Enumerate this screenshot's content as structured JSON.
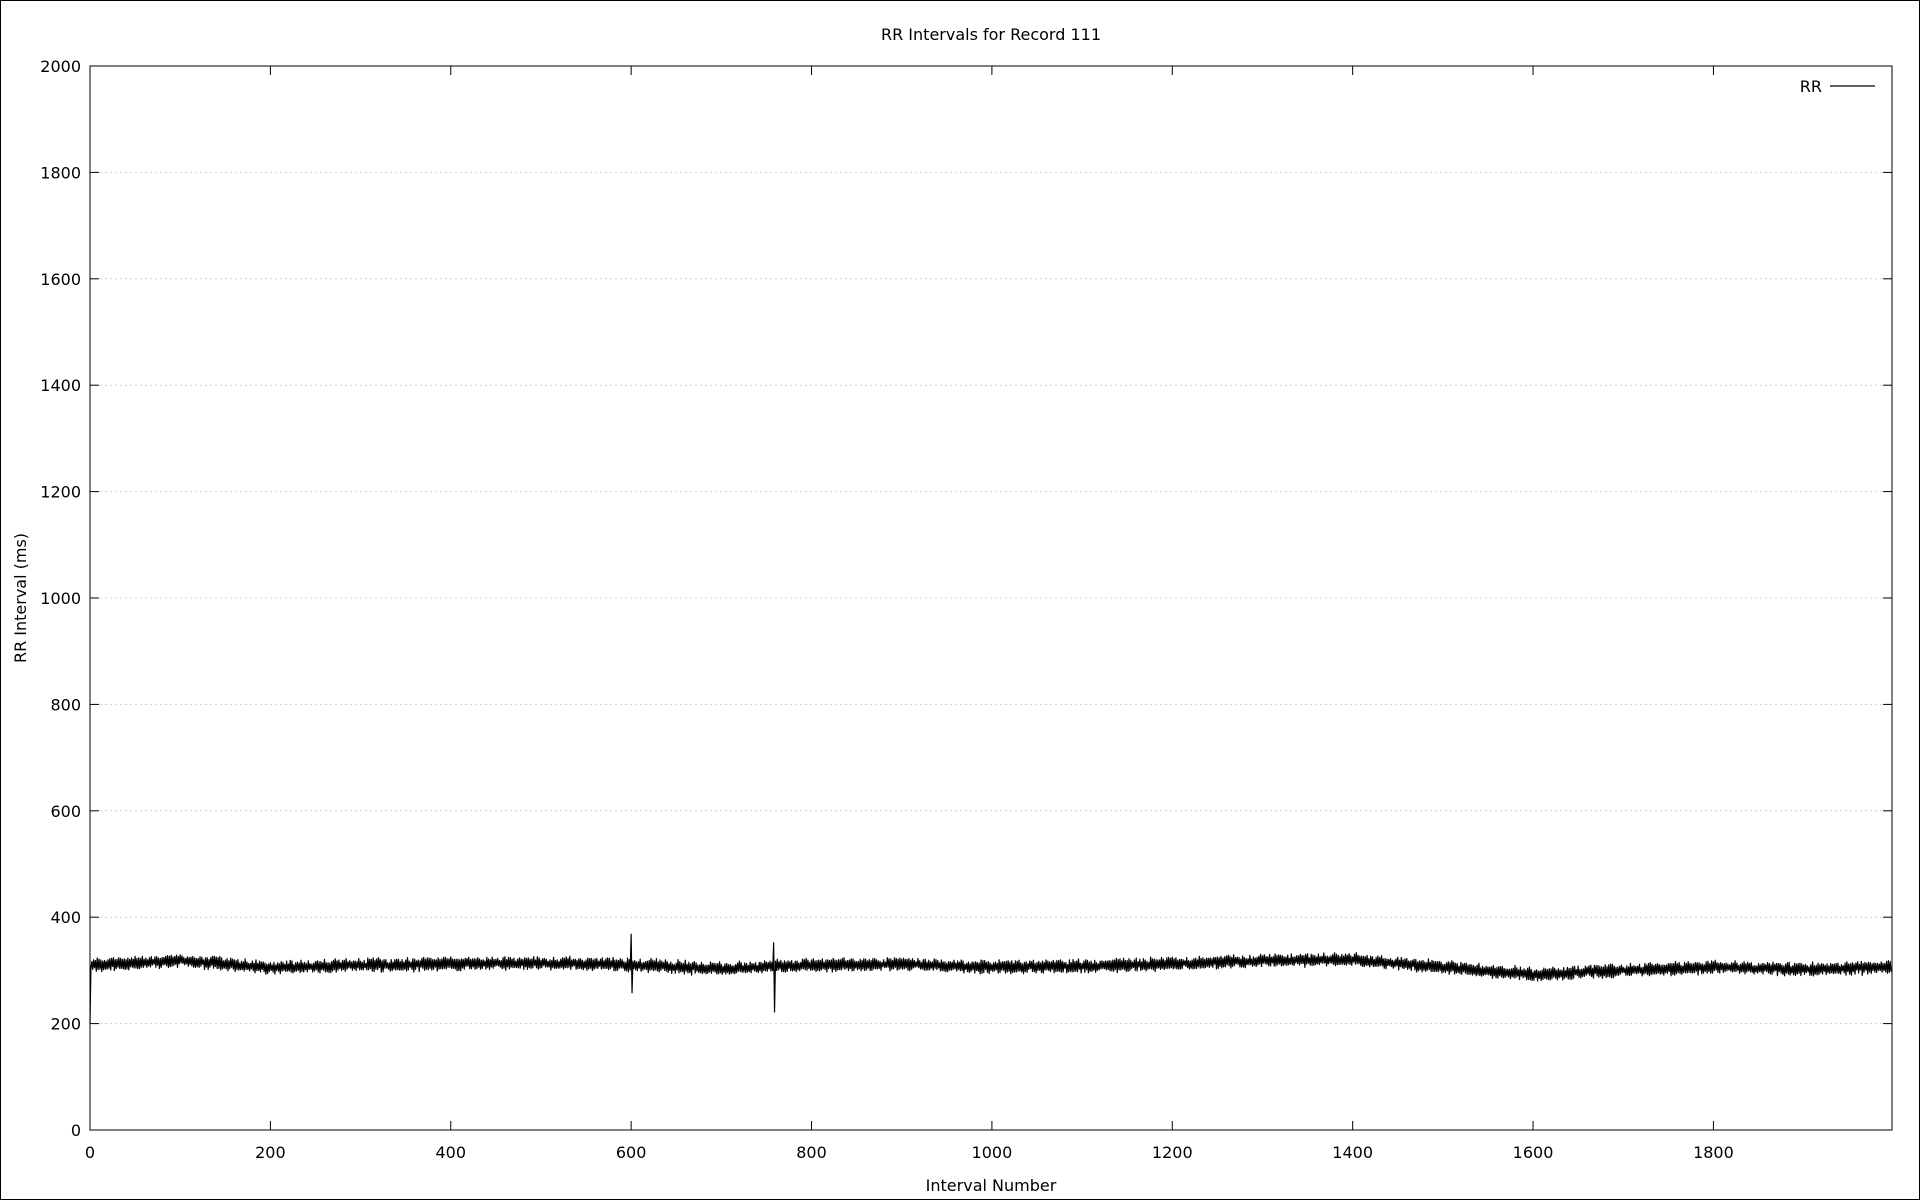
{
  "chart_data": {
    "type": "line",
    "title": "RR Intervals for Record 111",
    "xlabel": "Interval Number",
    "ylabel": "RR Interval (ms)",
    "xlim": [
      0,
      1998
    ],
    "ylim": [
      0,
      2000
    ],
    "x_ticks": [
      0,
      200,
      400,
      600,
      800,
      1000,
      1200,
      1400,
      1600,
      1800
    ],
    "y_ticks": [
      0,
      200,
      400,
      600,
      800,
      1000,
      1200,
      1400,
      1600,
      1800,
      2000
    ],
    "grid": true,
    "legend_position": "top-right",
    "series": [
      {
        "name": "RR",
        "color": "#000000",
        "n_points": 1998,
        "start_value": 200,
        "baseline": [
          [
            0,
            310
          ],
          [
            100,
            318
          ],
          [
            200,
            305
          ],
          [
            300,
            310
          ],
          [
            400,
            312
          ],
          [
            500,
            314
          ],
          [
            600,
            310
          ],
          [
            700,
            303
          ],
          [
            800,
            310
          ],
          [
            900,
            312
          ],
          [
            1000,
            306
          ],
          [
            1100,
            308
          ],
          [
            1200,
            312
          ],
          [
            1300,
            318
          ],
          [
            1400,
            320
          ],
          [
            1500,
            306
          ],
          [
            1600,
            292
          ],
          [
            1700,
            300
          ],
          [
            1800,
            306
          ],
          [
            1900,
            302
          ],
          [
            1997,
            306
          ]
        ],
        "oscillation_amplitude": 12,
        "spikes": [
          {
            "x": 600,
            "value": 368
          },
          {
            "x": 601,
            "value": 258
          },
          {
            "x": 758,
            "value": 352
          },
          {
            "x": 759,
            "value": 222
          }
        ]
      }
    ]
  }
}
